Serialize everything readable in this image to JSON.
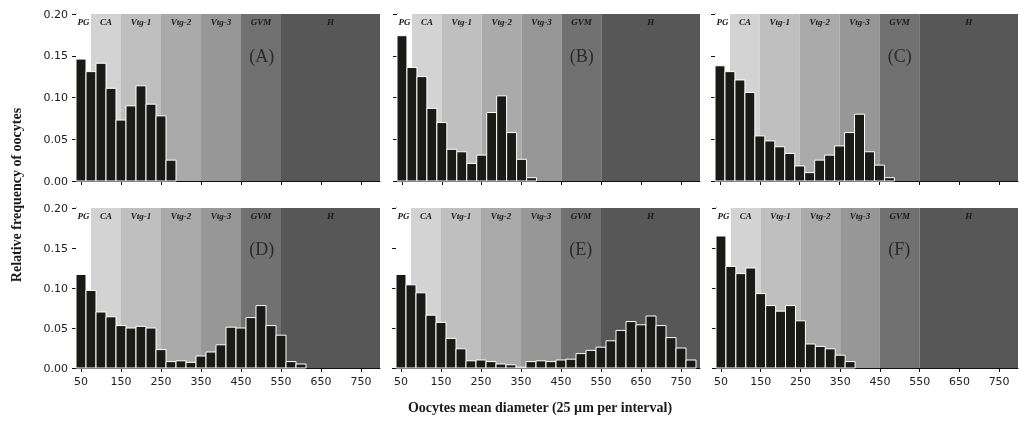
{
  "chart_data": [
    {
      "type": "histogram",
      "tick_labels": "y",
      "annotations": [
        "(A)"
      ],
      "color": "#1a1a16",
      "xlim": [
        37.5,
        797.5
      ],
      "ylim": [
        0,
        0.2
      ],
      "xticks": [
        50,
        150,
        250,
        350,
        450,
        550,
        650,
        750
      ],
      "yticks": [
        {
          "value": 0,
          "label": "0.00"
        },
        {
          "value": 0.05,
          "label": "0.05"
        },
        {
          "value": 0.1,
          "label": "0.10"
        },
        {
          "value": 0.15,
          "label": "0.15"
        },
        {
          "value": 0.2,
          "label": "0.20"
        }
      ],
      "bands": [
        {
          "axis": "x",
          "from": 37.5,
          "to": 75,
          "label": "PG",
          "color": "#ffffff"
        },
        {
          "axis": "x",
          "from": 75,
          "to": 150,
          "label": "CA",
          "color": "#d3d3d3"
        },
        {
          "axis": "x",
          "from": 150,
          "to": 250,
          "label": "Vtg-1",
          "color": "#bfbfbf"
        },
        {
          "axis": "x",
          "from": 250,
          "to": 350,
          "label": "Vtg-2",
          "color": "#aaaaaa"
        },
        {
          "axis": "x",
          "from": 350,
          "to": 450,
          "label": "Vtg-3",
          "color": "#979797"
        },
        {
          "axis": "x",
          "from": 450,
          "to": 550,
          "label": "GVM",
          "color": "#717171"
        },
        {
          "axis": "x",
          "from": 550,
          "to": 797.5,
          "label": "H",
          "color": "#575757"
        }
      ],
      "bins": [
        37.5,
        62.5,
        87.5,
        112.5,
        137.5,
        162.5,
        187.5,
        212.5,
        237.5,
        262.5,
        287.5
      ],
      "values": [
        0.146,
        0.131,
        0.141,
        0.111,
        0.073,
        0.09,
        0.114,
        0.092,
        0.078,
        0.025
      ]
    },
    {
      "type": "histogram",
      "tick_labels": false,
      "annotations": [
        "(B)"
      ],
      "color": "#1a1a16",
      "xlim": [
        37.5,
        797.5
      ],
      "ylim": [
        0,
        0.2
      ],
      "xticks": [
        50,
        150,
        250,
        350,
        450,
        550,
        650,
        750
      ],
      "yticks": [
        0,
        0.05,
        0.1,
        0.15,
        0.2
      ],
      "bands": [
        {
          "axis": "x",
          "from": 37.5,
          "to": 75,
          "label": "PG",
          "color": "#ffffff"
        },
        {
          "axis": "x",
          "from": 75,
          "to": 150,
          "label": "CA",
          "color": "#d3d3d3"
        },
        {
          "axis": "x",
          "from": 150,
          "to": 250,
          "label": "Vtg-1",
          "color": "#bfbfbf"
        },
        {
          "axis": "x",
          "from": 250,
          "to": 350,
          "label": "Vtg-2",
          "color": "#aaaaaa"
        },
        {
          "axis": "x",
          "from": 350,
          "to": 450,
          "label": "Vtg-3",
          "color": "#979797"
        },
        {
          "axis": "x",
          "from": 450,
          "to": 550,
          "label": "GVM",
          "color": "#717171"
        },
        {
          "axis": "x",
          "from": 550,
          "to": 797.5,
          "label": "H",
          "color": "#575757"
        }
      ],
      "bins": [
        37.5,
        62.5,
        87.5,
        112.5,
        137.5,
        162.5,
        187.5,
        212.5,
        237.5,
        262.5,
        287.5,
        312.5,
        337.5,
        362.5,
        387.5
      ],
      "values": [
        0.174,
        0.136,
        0.125,
        0.087,
        0.07,
        0.038,
        0.035,
        0.021,
        0.031,
        0.082,
        0.102,
        0.058,
        0.026,
        0.004
      ]
    },
    {
      "type": "histogram",
      "tick_labels": false,
      "annotations": [
        "(C)"
      ],
      "color": "#1a1a16",
      "xlim": [
        37.5,
        797.5
      ],
      "ylim": [
        0,
        0.2
      ],
      "xticks": [
        50,
        150,
        250,
        350,
        450,
        550,
        650,
        750
      ],
      "yticks": [
        0,
        0.05,
        0.1,
        0.15,
        0.2
      ],
      "bands": [
        {
          "axis": "x",
          "from": 37.5,
          "to": 75,
          "label": "PG",
          "color": "#ffffff"
        },
        {
          "axis": "x",
          "from": 75,
          "to": 150,
          "label": "CA",
          "color": "#d3d3d3"
        },
        {
          "axis": "x",
          "from": 150,
          "to": 250,
          "label": "Vtg-1",
          "color": "#bfbfbf"
        },
        {
          "axis": "x",
          "from": 250,
          "to": 350,
          "label": "Vtg-2",
          "color": "#aaaaaa"
        },
        {
          "axis": "x",
          "from": 350,
          "to": 450,
          "label": "Vtg-3",
          "color": "#979797"
        },
        {
          "axis": "x",
          "from": 450,
          "to": 550,
          "label": "GVM",
          "color": "#717171"
        },
        {
          "axis": "x",
          "from": 550,
          "to": 797.5,
          "label": "H",
          "color": "#575757"
        }
      ],
      "bins": [
        37.5,
        62.5,
        87.5,
        112.5,
        137.5,
        162.5,
        187.5,
        212.5,
        237.5,
        262.5,
        287.5,
        312.5,
        337.5,
        362.5,
        387.5,
        412.5,
        437.5,
        462.5,
        487.5
      ],
      "values": [
        0.138,
        0.131,
        0.121,
        0.106,
        0.054,
        0.048,
        0.041,
        0.033,
        0.018,
        0.01,
        0.025,
        0.031,
        0.042,
        0.058,
        0.08,
        0.035,
        0.019,
        0.004
      ]
    },
    {
      "type": "histogram",
      "ylabel": "Relative frequency of oocytes",
      "color": "#1a1a16",
      "annotations": [
        "(D)"
      ],
      "xlim": [
        37.5,
        797.5
      ],
      "ylim": [
        0,
        0.2
      ],
      "xticks": [
        50,
        150,
        250,
        350,
        450,
        550,
        650,
        750
      ],
      "yticks": [
        {
          "value": 0,
          "label": "0.00"
        },
        {
          "value": 0.05,
          "label": "0.05"
        },
        {
          "value": 0.1,
          "label": "0.10"
        },
        {
          "value": 0.15,
          "label": "0.15"
        },
        {
          "value": 0.2,
          "label": "0.20"
        }
      ],
      "bands": [
        {
          "axis": "x",
          "from": 37.5,
          "to": 75,
          "label": "PG",
          "color": "#ffffff"
        },
        {
          "axis": "x",
          "from": 75,
          "to": 150,
          "label": "CA",
          "color": "#d3d3d3"
        },
        {
          "axis": "x",
          "from": 150,
          "to": 250,
          "label": "Vtg-1",
          "color": "#bfbfbf"
        },
        {
          "axis": "x",
          "from": 250,
          "to": 350,
          "label": "Vtg-2",
          "color": "#aaaaaa"
        },
        {
          "axis": "x",
          "from": 350,
          "to": 450,
          "label": "Vtg-3",
          "color": "#979797"
        },
        {
          "axis": "x",
          "from": 450,
          "to": 550,
          "label": "GVM",
          "color": "#717171"
        },
        {
          "axis": "x",
          "from": 550,
          "to": 797.5,
          "label": "H",
          "color": "#575757"
        }
      ],
      "bins": [
        37.5,
        62.5,
        87.5,
        112.5,
        137.5,
        162.5,
        187.5,
        212.5,
        237.5,
        262.5,
        287.5,
        312.5,
        337.5,
        362.5,
        387.5,
        412.5,
        437.5,
        462.5,
        487.5,
        512.5,
        537.5,
        562.5,
        587.5,
        612.5
      ],
      "values": [
        0.117,
        0.097,
        0.07,
        0.064,
        0.053,
        0.05,
        0.052,
        0.05,
        0.023,
        0.008,
        0.009,
        0.007,
        0.015,
        0.02,
        0.029,
        0.051,
        0.05,
        0.063,
        0.078,
        0.053,
        0.041,
        0.008,
        0.005
      ]
    },
    {
      "type": "histogram",
      "tick_labels": "x",
      "xlabel": "Oocytes mean diameter (25 µm per interval)",
      "annotations": [
        "(E)"
      ],
      "color": "#1a1a16",
      "xlim": [
        37.5,
        797.5
      ],
      "ylim": [
        0,
        0.2
      ],
      "xticks": [
        50,
        150,
        250,
        350,
        450,
        550,
        650,
        750
      ],
      "yticks": [
        0,
        0.05,
        0.1,
        0.15,
        0.2
      ],
      "bands": [
        {
          "axis": "x",
          "from": 37.5,
          "to": 75,
          "label": "PG",
          "color": "#ffffff"
        },
        {
          "axis": "x",
          "from": 75,
          "to": 150,
          "label": "CA",
          "color": "#d3d3d3"
        },
        {
          "axis": "x",
          "from": 150,
          "to": 250,
          "label": "Vtg-1",
          "color": "#bfbfbf"
        },
        {
          "axis": "x",
          "from": 250,
          "to": 350,
          "label": "Vtg-2",
          "color": "#aaaaaa"
        },
        {
          "axis": "x",
          "from": 350,
          "to": 450,
          "label": "Vtg-3",
          "color": "#979797"
        },
        {
          "axis": "x",
          "from": 450,
          "to": 550,
          "label": "GVM",
          "color": "#717171"
        },
        {
          "axis": "x",
          "from": 550,
          "to": 797.5,
          "label": "H",
          "color": "#575757"
        }
      ],
      "bins": [
        37.5,
        62.5,
        87.5,
        112.5,
        137.5,
        162.5,
        187.5,
        212.5,
        237.5,
        262.5,
        287.5,
        312.5,
        337.5,
        362.5,
        387.5,
        412.5,
        437.5,
        462.5,
        487.5,
        512.5,
        537.5,
        562.5,
        587.5,
        612.5,
        637.5,
        662.5,
        687.5,
        712.5,
        737.5,
        762.5,
        787.5
      ],
      "values": [
        0.117,
        0.104,
        0.094,
        0.066,
        0.057,
        0.037,
        0.024,
        0.009,
        0.01,
        0.008,
        0.005,
        0.004,
        0.001,
        0.008,
        0.009,
        0.008,
        0.01,
        0.011,
        0.018,
        0.022,
        0.026,
        0.034,
        0.047,
        0.058,
        0.054,
        0.065,
        0.053,
        0.038,
        0.025,
        0.01
      ]
    },
    {
      "type": "histogram",
      "tick_labels": "x",
      "annotations": [
        "(F)"
      ],
      "color": "#1a1a16",
      "xlim": [
        37.5,
        797.5
      ],
      "ylim": [
        0,
        0.2
      ],
      "xticks": [
        50,
        150,
        250,
        350,
        450,
        550,
        650,
        750
      ],
      "yticks": [
        0,
        0.05,
        0.1,
        0.15,
        0.2
      ],
      "bands": [
        {
          "axis": "x",
          "from": 37.5,
          "to": 75,
          "label": "PG",
          "color": "#ffffff"
        },
        {
          "axis": "x",
          "from": 75,
          "to": 150,
          "label": "CA",
          "color": "#d3d3d3"
        },
        {
          "axis": "x",
          "from": 150,
          "to": 250,
          "label": "Vtg-1",
          "color": "#bfbfbf"
        },
        {
          "axis": "x",
          "from": 250,
          "to": 350,
          "label": "Vtg-2",
          "color": "#aaaaaa"
        },
        {
          "axis": "x",
          "from": 350,
          "to": 450,
          "label": "Vtg-3",
          "color": "#979797"
        },
        {
          "axis": "x",
          "from": 450,
          "to": 550,
          "label": "GVM",
          "color": "#717171"
        },
        {
          "axis": "x",
          "from": 550,
          "to": 797.5,
          "label": "H",
          "color": "#575757"
        }
      ],
      "bins": [
        37.5,
        62.5,
        87.5,
        112.5,
        137.5,
        162.5,
        187.5,
        212.5,
        237.5,
        262.5,
        287.5,
        312.5,
        337.5,
        362.5,
        387.5
      ],
      "values": [
        0.165,
        0.127,
        0.118,
        0.125,
        0.093,
        0.078,
        0.071,
        0.078,
        0.059,
        0.03,
        0.027,
        0.024,
        0.016,
        0.008
      ]
    }
  ]
}
